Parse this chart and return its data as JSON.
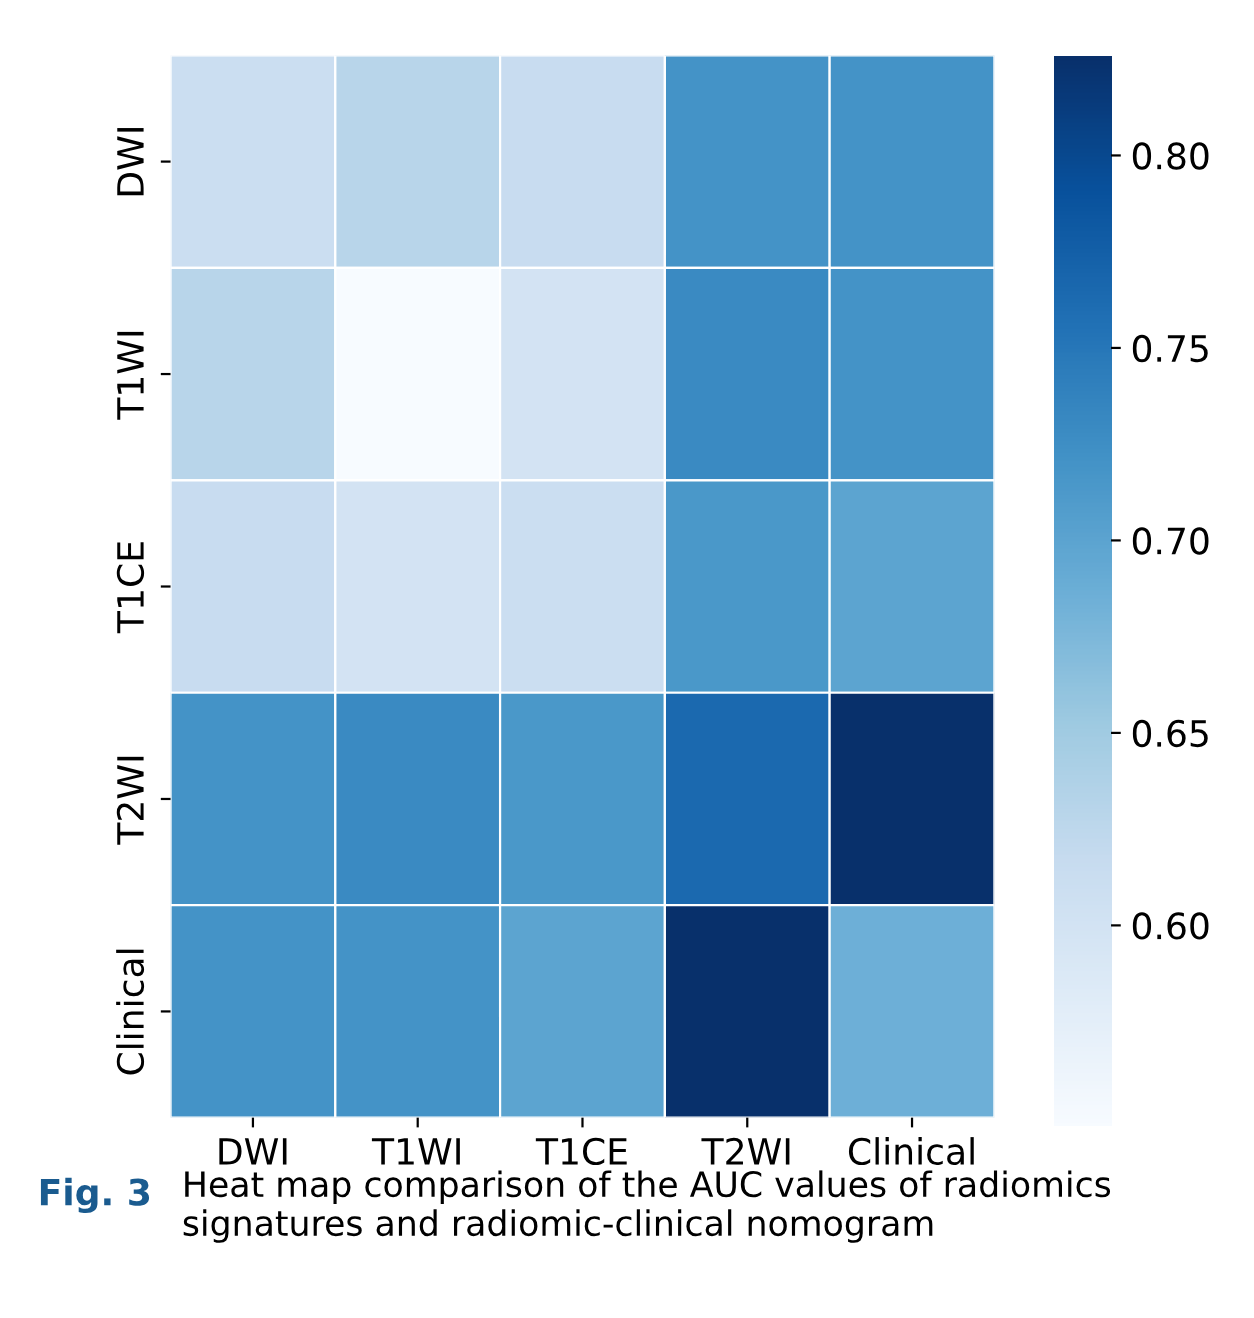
{
  "chart_data": {
    "type": "heatmap",
    "categories": [
      "DWI",
      "T1WI",
      "T1CE",
      "T2WI",
      "Clinical"
    ],
    "y_categories": [
      "DWI",
      "T1WI",
      "T1CE",
      "T2WI",
      "Clinical"
    ],
    "cells": [
      [
        0.61,
        0.63,
        0.615,
        0.72,
        0.72
      ],
      [
        0.63,
        0.548,
        0.6,
        0.73,
        0.72
      ],
      [
        0.615,
        0.6,
        0.61,
        0.715,
        0.7
      ],
      [
        0.72,
        0.73,
        0.715,
        0.765,
        0.826
      ],
      [
        0.72,
        0.72,
        0.7,
        0.826,
        0.685
      ]
    ],
    "clim": [
      0.548,
      0.826
    ],
    "cticks": [
      {
        "value": 0.6,
        "label": "0.60"
      },
      0.65,
      {
        "value": 0.7,
        "label": "0.70"
      },
      0.75,
      {
        "value": 0.8,
        "label": "0.80"
      }
    ],
    "annotations": [
      "Fig. 3",
      "Heat map comparison of the AUC values of radiomics signatures and radiomic-clinical nomogram"
    ]
  }
}
